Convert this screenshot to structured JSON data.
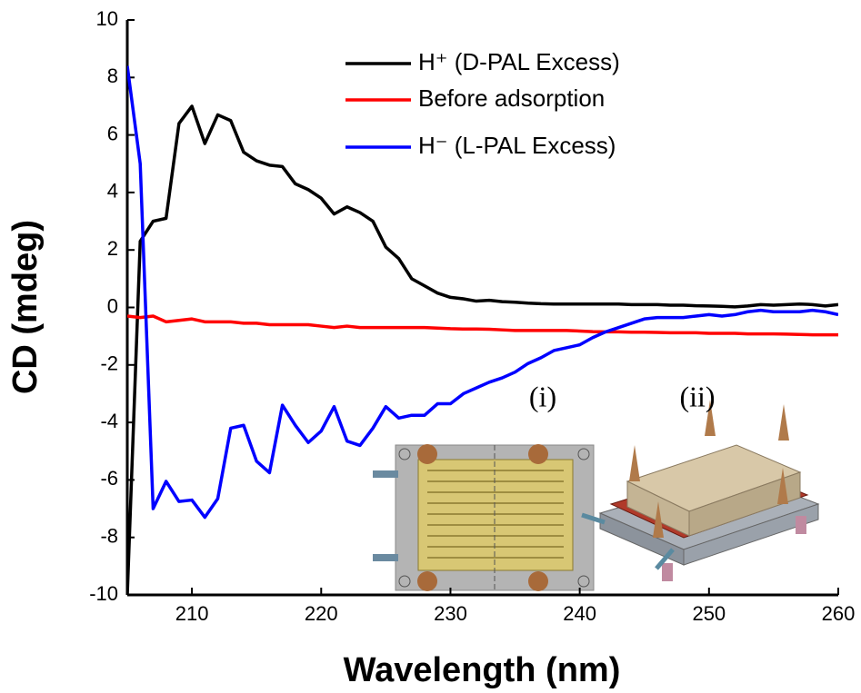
{
  "chart_data": {
    "type": "line",
    "x_label": "Wavelength (nm)",
    "y_label": "CD  (mdeg)",
    "xlim": [
      205,
      260
    ],
    "ylim": [
      -10,
      10
    ],
    "xticks": [
      210,
      220,
      230,
      240,
      250,
      260
    ],
    "yticks": [
      -10,
      -8,
      -6,
      -4,
      -2,
      0,
      2,
      4,
      6,
      8,
      10
    ],
    "x": [
      205,
      206,
      207,
      208,
      209,
      210,
      211,
      212,
      213,
      214,
      215,
      216,
      217,
      218,
      219,
      220,
      221,
      222,
      223,
      224,
      225,
      226,
      227,
      228,
      229,
      230,
      231,
      232,
      233,
      234,
      235,
      236,
      237,
      238,
      239,
      240,
      241,
      242,
      243,
      244,
      245,
      246,
      247,
      248,
      249,
      250,
      251,
      252,
      253,
      254,
      255,
      256,
      257,
      258,
      259,
      260
    ],
    "series": [
      {
        "name": "H⁺ (D-PAL Excess)",
        "color": "#000000",
        "values": [
          -10,
          2.3,
          3.0,
          3.1,
          6.4,
          7.0,
          5.7,
          6.7,
          6.5,
          5.4,
          5.1,
          4.95,
          4.9,
          4.3,
          4.1,
          3.8,
          3.25,
          3.5,
          3.3,
          3.0,
          2.1,
          1.7,
          1.0,
          0.75,
          0.5,
          0.35,
          0.3,
          0.22,
          0.25,
          0.2,
          0.18,
          0.15,
          0.13,
          0.12,
          0.12,
          0.12,
          0.12,
          0.12,
          0.12,
          0.1,
          0.1,
          0.1,
          0.08,
          0.08,
          0.06,
          0.05,
          0.04,
          0.02,
          0.05,
          0.1,
          0.08,
          0.1,
          0.12,
          0.1,
          0.05,
          0.1
        ]
      },
      {
        "name": "Before adsorption",
        "color": "#ff0000",
        "values": [
          -0.3,
          -0.35,
          -0.3,
          -0.5,
          -0.45,
          -0.4,
          -0.5,
          -0.5,
          -0.5,
          -0.55,
          -0.55,
          -0.6,
          -0.6,
          -0.6,
          -0.6,
          -0.65,
          -0.7,
          -0.65,
          -0.7,
          -0.7,
          -0.7,
          -0.7,
          -0.7,
          -0.7,
          -0.72,
          -0.74,
          -0.75,
          -0.75,
          -0.76,
          -0.78,
          -0.8,
          -0.8,
          -0.8,
          -0.8,
          -0.8,
          -0.82,
          -0.84,
          -0.85,
          -0.85,
          -0.86,
          -0.86,
          -0.87,
          -0.88,
          -0.88,
          -0.88,
          -0.9,
          -0.9,
          -0.9,
          -0.92,
          -0.92,
          -0.92,
          -0.93,
          -0.94,
          -0.95,
          -0.95,
          -0.95
        ]
      },
      {
        "name": "H⁻ (L-PAL Excess)",
        "color": "#0000ff",
        "values": [
          8.4,
          5.0,
          -7.0,
          -6.05,
          -6.75,
          -6.7,
          -7.3,
          -6.65,
          -4.2,
          -4.1,
          -5.35,
          -5.75,
          -3.4,
          -4.1,
          -4.7,
          -4.3,
          -3.45,
          -4.65,
          -4.8,
          -4.2,
          -3.45,
          -3.85,
          -3.75,
          -3.75,
          -3.35,
          -3.35,
          -3.0,
          -2.8,
          -2.6,
          -2.45,
          -2.25,
          -1.95,
          -1.75,
          -1.5,
          -1.4,
          -1.3,
          -1.05,
          -0.85,
          -0.7,
          -0.55,
          -0.4,
          -0.35,
          -0.35,
          -0.35,
          -0.3,
          -0.25,
          -0.3,
          -0.25,
          -0.15,
          -0.1,
          -0.15,
          -0.15,
          -0.15,
          -0.1,
          -0.15,
          -0.25
        ]
      }
    ],
    "inset_labels": [
      "(i)",
      "(ii)"
    ]
  }
}
